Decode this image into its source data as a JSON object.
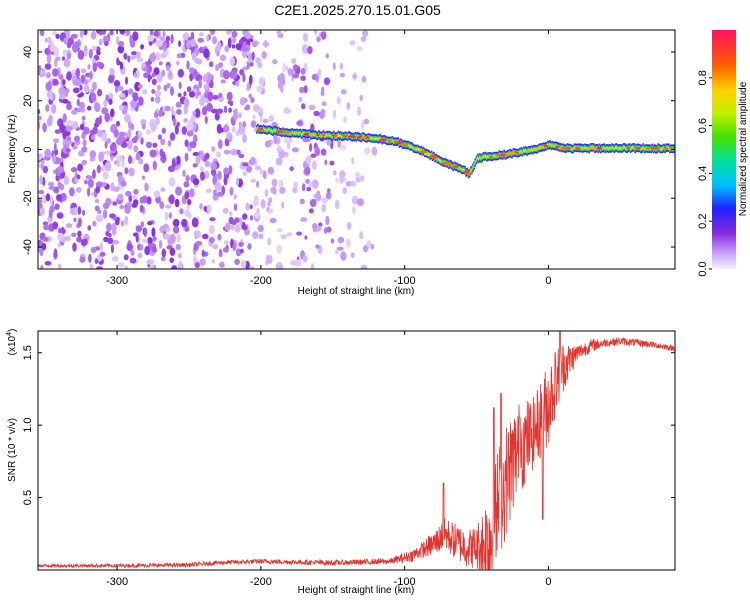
{
  "title": "C2E1.2025.270.15.01.G05",
  "colors": {
    "snr_line": "#e8312a",
    "axis": "#000000",
    "background": "#ffffff"
  },
  "chart_data": [
    {
      "type": "heatmap",
      "name": "spectrogram",
      "xlabel": "Height of straight line (km)",
      "ylabel": "Frequency (Hz)",
      "xlim": [
        -355,
        88
      ],
      "ylim": [
        -49,
        49
      ],
      "xticks": [
        -300,
        -200,
        -100,
        0
      ],
      "xtick_labels": [
        "-300",
        "-200",
        "-100",
        "0"
      ],
      "yticks": [
        -40,
        -20,
        0,
        20,
        40
      ],
      "ytick_labels": [
        "-40",
        "-20",
        "0",
        "20",
        "40"
      ],
      "ridge_line": {
        "x": [
          -203,
          -190,
          -175,
          -160,
          -140,
          -120,
          -105,
          -90,
          -80,
          -70,
          -60,
          -55,
          -50,
          -45,
          -40,
          -30,
          -20,
          -10,
          0,
          10,
          20,
          40,
          60,
          88
        ],
        "y": [
          8.5,
          7.5,
          6.5,
          6,
          5.5,
          4.5,
          3,
          0,
          -3,
          -6,
          -8,
          -10,
          -4,
          -3,
          -3,
          -2,
          -1,
          0,
          2,
          0.5,
          0.5,
          0.5,
          0.5,
          0.5
        ]
      },
      "noise_region_x": [
        -355,
        -120
      ]
    },
    {
      "type": "colorbar",
      "name": "colorbar",
      "label": "Normalized spectral amplitude",
      "range": [
        0,
        1
      ],
      "ticks": [
        0,
        0.2,
        0.4,
        0.6,
        0.8
      ],
      "tick_labels": [
        "0.0",
        "0.2",
        "0.4",
        "0.6",
        "0.8"
      ]
    },
    {
      "type": "line",
      "name": "snr",
      "xlabel": "Height of straight line (km)",
      "ylabel": "SNR (10 * v/v)",
      "multiplier_label": "(x10",
      "multiplier_exponent": "4",
      "multiplier_close": ")",
      "xlim": [
        -355,
        88
      ],
      "ylim": [
        0,
        1.65
      ],
      "xticks": [
        -300,
        -200,
        -100,
        0
      ],
      "xtick_labels": [
        "-300",
        "-200",
        "-100",
        "0"
      ],
      "yticks": [
        0.5,
        1.0,
        1.5
      ],
      "ytick_labels": [
        "0.5",
        "1.0",
        "1.5"
      ],
      "envelope_x": [
        -355,
        -300,
        -250,
        -230,
        -200,
        -150,
        -110,
        -95,
        -80,
        -72,
        -65,
        -55,
        -45,
        -38,
        -35,
        -30,
        -25,
        -20,
        -15,
        -10,
        -5,
        0,
        5,
        10,
        20,
        30,
        40,
        50,
        60,
        70,
        88
      ],
      "envelope_y": [
        0.03,
        0.03,
        0.035,
        0.05,
        0.06,
        0.05,
        0.06,
        0.1,
        0.18,
        0.25,
        0.2,
        0.15,
        0.17,
        0.25,
        0.45,
        0.6,
        0.75,
        0.85,
        0.9,
        0.95,
        1.05,
        1.15,
        1.3,
        1.4,
        1.5,
        1.55,
        1.57,
        1.58,
        1.57,
        1.56,
        1.53
      ],
      "noise_amp_x": [
        -355,
        -110,
        -90,
        -70,
        -50,
        -40,
        -30,
        -10,
        0,
        20,
        40,
        88
      ],
      "noise_amp_y": [
        0.01,
        0.02,
        0.05,
        0.12,
        0.15,
        0.45,
        0.4,
        0.25,
        0.3,
        0.06,
        0.03,
        0.02
      ],
      "spikes": [
        {
          "x": -73,
          "y": 0.6
        },
        {
          "x": -38,
          "y": 1.12
        },
        {
          "x": -33,
          "y": 1.22
        },
        {
          "x": -20,
          "y": 1.05
        },
        {
          "x": -4,
          "y": 0.35
        },
        {
          "x": 8,
          "y": 1.65
        }
      ]
    }
  ]
}
